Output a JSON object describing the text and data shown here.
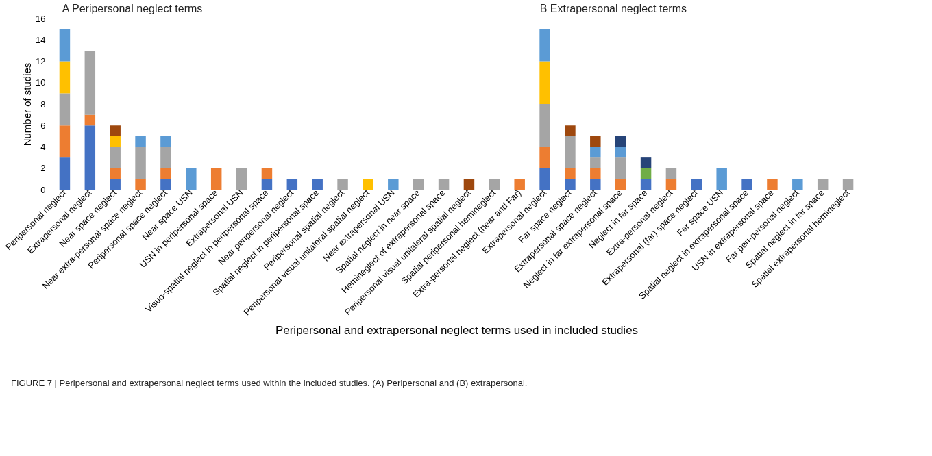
{
  "chart_data": {
    "type": "bar",
    "stacked": true,
    "ylabel": "Number of studies",
    "xlabel": "Peripersonal and extrapersonal neglect terms used in included studies",
    "annotations": [
      "A Peripersonal neglect terms",
      "B Extrapersonal neglect terms",
      "FIGURE 7 | Peripersonal and extrapersonal neglect terms used within the included studies. (A) Peripersonal and (B) extrapersonal."
    ],
    "categories": [
      "Peripersonal neglect",
      "Extrapersonal neglect",
      "Near space neglect",
      "Near extra-personal space neglect",
      "Peripersonal space neglect",
      "Near space USN",
      "USN in peripersonal space",
      "Extrapersonal USN",
      "Visuo-spatial neglect in peripersonal space",
      "Near peripersonal neglect",
      "Spatial neglect in peripersonal space",
      "Peripersonal spatial neglect",
      "Peripersonal visual unilateral spatial neglect",
      "Near extrapersonal USN",
      "Spatial neglect in near space",
      "Hemineglect of extrapersonal space",
      "Peripersonal visual unilateral spatial neglect",
      "Spatial peripersonal hemineglect",
      "Extra-personal neglect (near and Far)",
      "Extrapersonal neglect",
      "Far space neglect",
      "Extrapersonal space neglect",
      "Neglect in far extrapersonal space",
      "Neglect in far space",
      "Extra-personal neglect",
      "Extrapersonal (far) space neglect",
      "Far space USN",
      "Spatial neglect in extrapersonal space",
      "USN in extrapersonal space",
      "Far peri-personal neglect",
      "Spatial neglect in far space",
      "Spatial extrapersonal hemineglect"
    ],
    "series": [
      {
        "color": "#4472c4",
        "values": [
          3,
          6,
          1,
          null,
          1,
          null,
          null,
          null,
          1,
          1,
          1,
          null,
          null,
          null,
          null,
          null,
          null,
          null,
          null,
          2,
          1,
          1,
          null,
          1,
          null,
          1,
          null,
          1,
          null,
          null,
          null,
          null
        ]
      },
      {
        "color": "#ed7d31",
        "values": [
          3,
          1,
          1,
          1,
          1,
          null,
          2,
          null,
          1,
          null,
          null,
          null,
          null,
          null,
          null,
          null,
          null,
          null,
          1,
          2,
          1,
          1,
          1,
          null,
          1,
          null,
          null,
          null,
          1,
          null,
          null,
          null
        ]
      },
      {
        "color": "#a5a5a5",
        "values": [
          3,
          6,
          2,
          3,
          2,
          null,
          null,
          2,
          null,
          null,
          null,
          1,
          null,
          null,
          1,
          1,
          null,
          1,
          null,
          4,
          3,
          1,
          2,
          null,
          1,
          null,
          null,
          null,
          null,
          null,
          1,
          1
        ]
      },
      {
        "color": "#ffc000",
        "values": [
          3,
          null,
          1,
          null,
          null,
          null,
          null,
          null,
          null,
          null,
          null,
          null,
          1,
          null,
          null,
          null,
          null,
          null,
          null,
          4,
          null,
          null,
          null,
          null,
          null,
          null,
          null,
          null,
          null,
          null,
          null,
          null
        ]
      },
      {
        "color": "#5b9bd5",
        "values": [
          3,
          null,
          null,
          1,
          1,
          2,
          null,
          null,
          null,
          null,
          null,
          null,
          null,
          1,
          null,
          null,
          null,
          null,
          null,
          3,
          null,
          1,
          1,
          null,
          null,
          null,
          2,
          null,
          null,
          1,
          null,
          null
        ]
      },
      {
        "color": "#70ad47",
        "values": [
          null,
          null,
          null,
          null,
          null,
          null,
          null,
          null,
          null,
          null,
          null,
          null,
          null,
          null,
          null,
          null,
          null,
          null,
          null,
          null,
          null,
          null,
          null,
          1,
          null,
          null,
          null,
          null,
          null,
          null,
          null,
          null
        ]
      },
      {
        "color": "#264478",
        "values": [
          null,
          null,
          null,
          null,
          null,
          null,
          null,
          null,
          null,
          null,
          null,
          null,
          null,
          null,
          null,
          null,
          null,
          null,
          null,
          null,
          null,
          null,
          1,
          1,
          null,
          null,
          null,
          null,
          null,
          null,
          null,
          null
        ]
      },
      {
        "color": "#9e480e",
        "values": [
          null,
          null,
          1,
          null,
          null,
          null,
          null,
          null,
          null,
          null,
          null,
          null,
          null,
          null,
          null,
          null,
          1,
          null,
          null,
          null,
          1,
          1,
          null,
          null,
          null,
          null,
          null,
          null,
          null,
          null,
          null,
          null
        ]
      }
    ],
    "ylim": [
      0,
      16
    ],
    "yticks": [
      0,
      2,
      4,
      6,
      8,
      10,
      12,
      14,
      16
    ],
    "grid": false,
    "legend": false
  }
}
